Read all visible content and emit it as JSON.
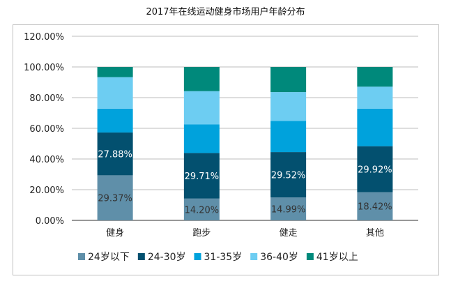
{
  "chart_data": {
    "type": "bar",
    "stacked": true,
    "title": "2017年在线运动健身市场用户年龄分布",
    "xlabel": "",
    "ylabel": "",
    "ylim": [
      0,
      120
    ],
    "yticks": [
      "0.00%",
      "20.00%",
      "40.00%",
      "60.00%",
      "80.00%",
      "100.00%",
      "120.00%"
    ],
    "grid": true,
    "legend": "bottom",
    "categories": [
      "健身",
      "跑步",
      "健走",
      "其他"
    ],
    "series": [
      {
        "name": "24岁以下",
        "color": "#5f8fa9",
        "values": [
          29.37,
          14.2,
          14.99,
          18.42
        ],
        "labels": [
          "29.37%",
          "14.20%",
          "14.99%",
          "18.42%"
        ]
      },
      {
        "name": "24-30岁",
        "color": "#03506f",
        "values": [
          27.88,
          29.71,
          29.52,
          29.92
        ],
        "labels": [
          "27.88%",
          "29.71%",
          "29.52%",
          "29.92%"
        ]
      },
      {
        "name": "31-35岁",
        "color": "#00a2dc",
        "values": [
          15.5,
          18.6,
          20.3,
          24.4
        ]
      },
      {
        "name": "36-40岁",
        "color": "#6dcdf2",
        "values": [
          20.6,
          21.7,
          18.8,
          14.4
        ]
      },
      {
        "name": "41岁以上",
        "color": "#00897b",
        "values": [
          6.65,
          15.79,
          16.39,
          12.86
        ]
      }
    ]
  }
}
